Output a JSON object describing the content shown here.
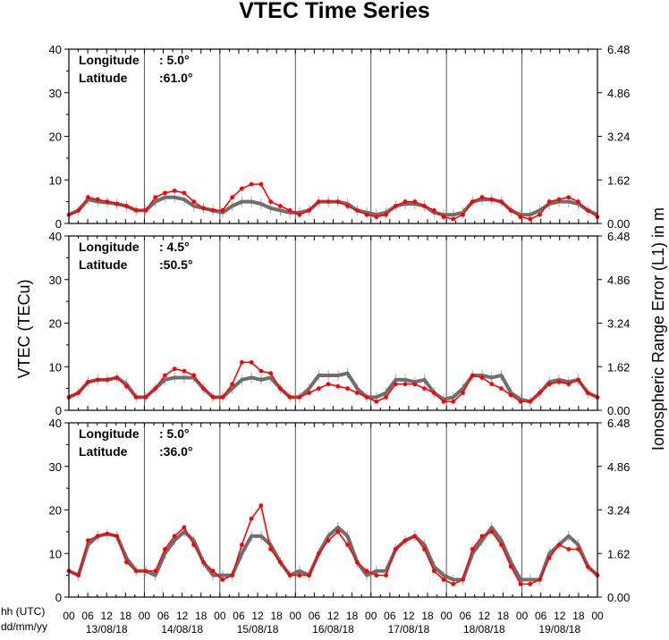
{
  "chart_data": {
    "type": "line",
    "title": "VTEC Time Series",
    "ylabel": "VTEC (TECu)",
    "ylabel_right": "Ionospheric Range Error (L1) in m",
    "time_label_hh": "hh (UTC)",
    "time_label_date": "dd/mm/yy",
    "hour_ticks": [
      "00",
      "06",
      "12",
      "18"
    ],
    "hour_end_tick": "00",
    "dates": [
      "13/08/18",
      "14/08/18",
      "15/08/18",
      "16/08/18",
      "17/08/18",
      "18/08/18",
      "19/08/18"
    ],
    "x_range_hours": [
      0,
      168
    ],
    "ylim": [
      0,
      40
    ],
    "y_ticks": [
      "0",
      "10",
      "20",
      "30",
      "40"
    ],
    "y_ticks_right": [
      "0.00",
      "1.62",
      "3.24",
      "4.86",
      "6.48"
    ],
    "series_colors": {
      "measured": "#ff0000",
      "reference": "#6e6e6e",
      "errorbar": "#aaaaaa"
    },
    "panels": [
      {
        "longitude_label": "Longitude",
        "longitude_value": ":   5.0°",
        "latitude_label": "Latitude",
        "latitude_value": ":61.0°",
        "series": [
          {
            "values": [
              2,
              3,
              5.5,
              5,
              4.8,
              4.5,
              4,
              3,
              3,
              5,
              6,
              6,
              5.5,
              4,
              3.5,
              3,
              2.5,
              4,
              5,
              5,
              4.5,
              3.5,
              3,
              2.5,
              2.5,
              3,
              5,
              5,
              5,
              4.5,
              3,
              2.5,
              2,
              2.5,
              4,
              4.5,
              4.5,
              4,
              2.5,
              2,
              2,
              2.5,
              5,
              5.5,
              5.5,
              5,
              3,
              2,
              2,
              3,
              4.5,
              5,
              5,
              4.5,
              3,
              2
            ]
          },
          {
            "values": [
              2,
              3,
              6,
              5.5,
              5,
              4.5,
              4,
              3,
              3,
              6,
              7,
              7.5,
              7,
              5,
              3.5,
              3,
              3,
              6,
              8,
              9,
              9,
              5,
              4,
              3,
              2,
              3,
              5,
              5,
              5,
              4,
              3,
              2,
              1.5,
              2,
              4,
              5,
              5,
              4,
              3,
              1.5,
              1,
              2,
              5,
              6,
              5.5,
              5,
              3,
              1.5,
              1,
              2,
              5,
              5.5,
              6,
              5,
              3,
              1.5
            ]
          }
        ]
      },
      {
        "longitude_label": "Longitude",
        "longitude_value": ":   4.5°",
        "latitude_label": "Latitude",
        "latitude_value": ":50.5°",
        "series": [
          {
            "values": [
              3,
              4,
              6.5,
              7,
              7,
              7.5,
              6,
              3,
              3,
              5,
              7,
              7.5,
              7.5,
              7.5,
              5,
              3,
              3,
              5,
              7,
              7.5,
              7,
              7.5,
              5,
              3,
              3,
              5,
              8,
              8,
              8,
              8.5,
              5,
              3,
              3,
              4,
              7,
              7,
              6.5,
              7,
              4,
              2.5,
              3,
              5,
              8,
              8,
              7.5,
              8,
              4,
              2.5,
              2,
              4,
              6.5,
              7,
              6.5,
              7,
              4,
              3
            ]
          },
          {
            "values": [
              3,
              4,
              6.5,
              7,
              7,
              7.5,
              5.5,
              3,
              3,
              5,
              8,
              9.5,
              9,
              8,
              5,
              3,
              3,
              6,
              11,
              11,
              9,
              8.5,
              5,
              3,
              3,
              4,
              5,
              6,
              5.5,
              5,
              4,
              3,
              2,
              3,
              6,
              6,
              6,
              5,
              4,
              2,
              2,
              4,
              8,
              7.5,
              6,
              5,
              3.5,
              2,
              2,
              4,
              6,
              6.5,
              6,
              7,
              4,
              3
            ]
          }
        ]
      },
      {
        "longitude_label": "Longitude",
        "longitude_value": ":   5.0°",
        "latitude_label": "Latitude",
        "latitude_value": ":36.0°",
        "series": [
          {
            "values": [
              6,
              5,
              12,
              14,
              14.5,
              14,
              9,
              6,
              6,
              5,
              10,
              13,
              15,
              13,
              8,
              5,
              5,
              5,
              10,
              14,
              14,
              12,
              8,
              5,
              6,
              5,
              10,
              14,
              16,
              14,
              8,
              5,
              6,
              6,
              11,
              13,
              14,
              12,
              7,
              5,
              4,
              4,
              10,
              13,
              16,
              13,
              8,
              4,
              4,
              4,
              10,
              12,
              14,
              12,
              7,
              5
            ]
          },
          {
            "values": [
              6,
              5,
              13,
              14,
              14.5,
              14,
              8,
              6,
              6,
              6,
              11,
              14,
              16,
              12,
              8,
              6,
              4,
              5,
              12,
              18,
              21,
              11,
              8,
              5,
              5,
              5,
              10,
              13,
              15,
              12,
              8,
              6,
              5,
              5,
              11,
              13,
              14,
              11,
              6,
              4,
              3,
              4,
              11,
              14,
              15,
              12,
              7,
              3,
              3,
              4,
              9,
              12,
              11,
              11,
              7,
              5
            ]
          }
        ]
      }
    ]
  }
}
